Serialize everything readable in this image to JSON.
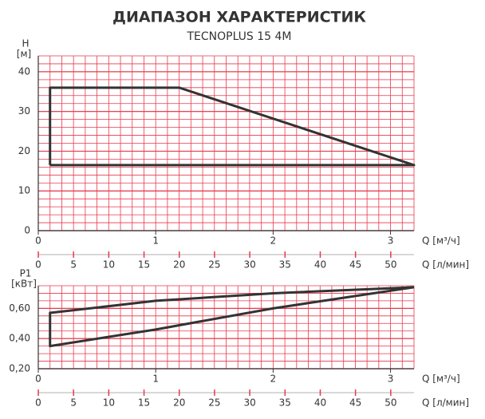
{
  "chart_data": [
    {
      "type": "line",
      "title": "ДИАПАЗОН ХАРАКТЕРИСТИК",
      "subtitle": "TECNOPLUS 15 4M",
      "y_label": "H",
      "y_unit": "[м]",
      "x_label": "Q [м³/ч]",
      "x2_label": "Q [л/мин]",
      "xlim": [
        0,
        3.2
      ],
      "xticks": [
        0,
        1,
        2,
        3
      ],
      "x2lim": [
        0,
        53.3
      ],
      "x2ticks": [
        0,
        5,
        10,
        15,
        20,
        25,
        30,
        35,
        40,
        45,
        50
      ],
      "ylim": [
        0,
        44
      ],
      "yticks": [
        0,
        10,
        20,
        30,
        40
      ],
      "grid": true,
      "xminor": 0.1,
      "yminor": 2,
      "grid_color": "#e8394d",
      "series": [
        {
          "color": "#333333",
          "x": [
            0.1,
            0.1,
            1.2,
            3.2,
            0.1
          ],
          "values": [
            16.5,
            36,
            36,
            16.5,
            16.5
          ]
        }
      ]
    },
    {
      "type": "line",
      "y_label": "P1",
      "y_unit": "[кВт]",
      "x_label": "Q [м³/ч]",
      "x2_label": "Q [л/мин]",
      "xlim": [
        0,
        3.2
      ],
      "xticks": [
        0,
        1,
        2,
        3
      ],
      "x2lim": [
        0,
        53.3
      ],
      "x2ticks": [
        0,
        5,
        10,
        15,
        20,
        25,
        30,
        35,
        40,
        45,
        50
      ],
      "ylim": [
        0.2,
        0.75
      ],
      "yticks": [
        {
          "value": 0.2,
          "label": "0,20"
        },
        {
          "value": 0.4,
          "label": "0,40"
        },
        {
          "value": 0.6,
          "label": "0,60"
        }
      ],
      "grid": true,
      "xminor": 0.1,
      "yminor": 0.05,
      "grid_color": "#e8394d",
      "series": [
        {
          "color": "#333333",
          "x": [
            3.2,
            2,
            1,
            0.1,
            0.1,
            1,
            2,
            3.2
          ],
          "values": [
            0.74,
            0.7,
            0.65,
            0.57,
            0.35,
            0.46,
            0.6,
            0.74
          ]
        }
      ]
    }
  ]
}
